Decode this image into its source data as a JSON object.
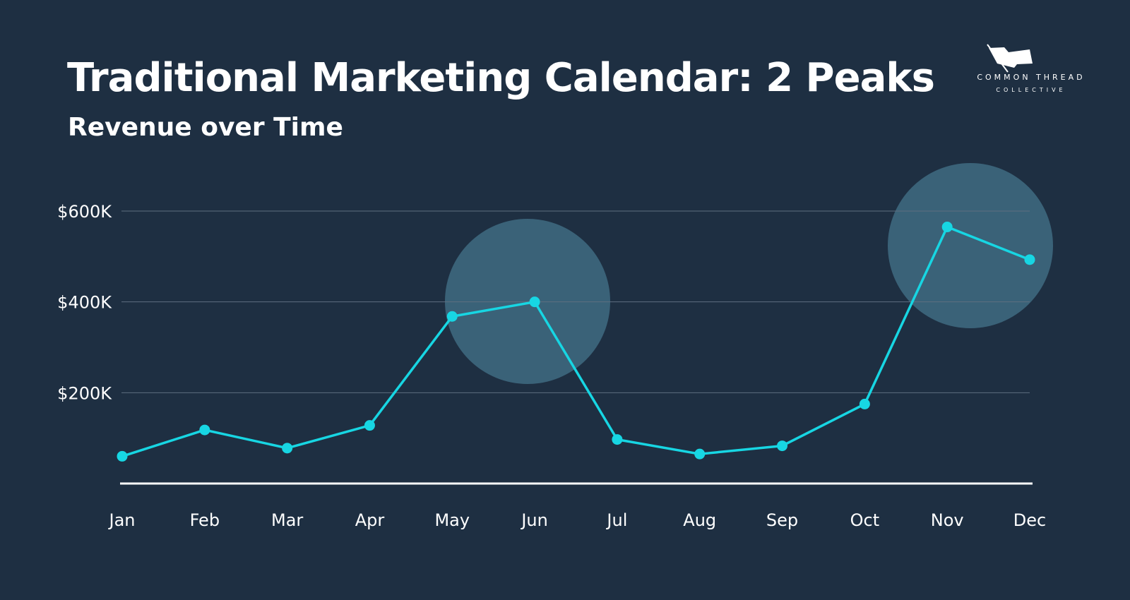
{
  "header": {
    "title": "Traditional Marketing Calendar: 2 Peaks",
    "subtitle": "Revenue over Time"
  },
  "logo": {
    "line1": "COMMON THREAD",
    "line2": "COLLECTIVE",
    "icon": "flag-needle-icon"
  },
  "colors": {
    "background": "#1e2f42",
    "line": "#17d6e3",
    "highlight": "#3a6278",
    "grid": "#5f6f80",
    "axis": "#ffffff"
  },
  "chart_data": {
    "type": "line",
    "title": "Traditional Marketing Calendar: 2 Peaks",
    "subtitle": "Revenue over Time",
    "categories": [
      "Jan",
      "Feb",
      "Mar",
      "Apr",
      "May",
      "Jun",
      "Jul",
      "Aug",
      "Sep",
      "Oct",
      "Nov",
      "Dec"
    ],
    "values": [
      60000,
      118000,
      78000,
      128000,
      368000,
      400000,
      97000,
      65000,
      83000,
      175000,
      565000,
      493000
    ],
    "ylim": [
      0,
      600000
    ],
    "yticks": [
      200000,
      400000,
      600000
    ],
    "ytick_labels": [
      "$200K",
      "$400K",
      "$600K"
    ],
    "grid": true,
    "highlighted_peaks": [
      "Jun",
      "Nov"
    ]
  }
}
